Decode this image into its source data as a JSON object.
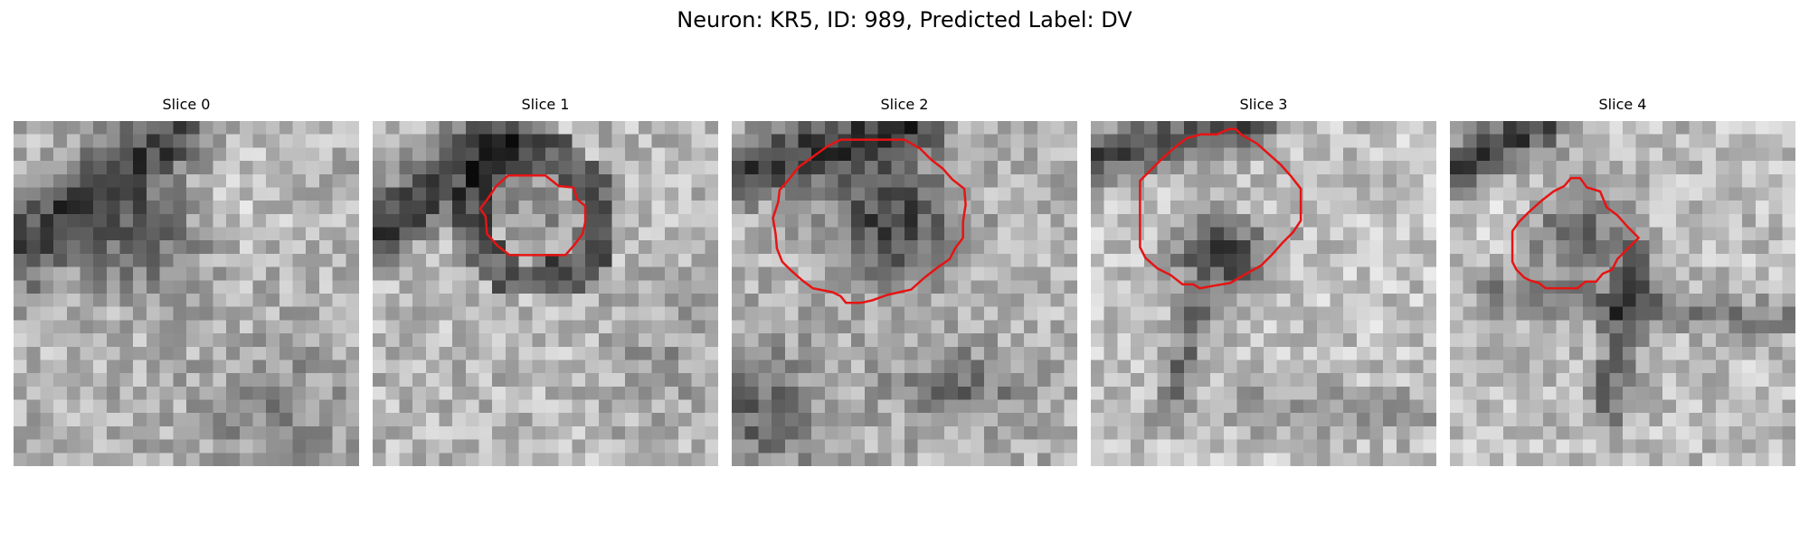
{
  "title": "Neuron: KR5, ID: 989, Predicted Label: DV",
  "contour_color": "#e61414",
  "panels": [
    {
      "label": "Slice 0",
      "has_contour": false,
      "contour": []
    },
    {
      "label": "Slice 1",
      "has_contour": true,
      "contour": [
        [
          10.2,
          4.1
        ],
        [
          13.0,
          4.1
        ],
        [
          14.0,
          4.9
        ],
        [
          15.1,
          5.0
        ],
        [
          15.4,
          5.9
        ],
        [
          16.0,
          6.4
        ],
        [
          16.0,
          7.6
        ],
        [
          15.8,
          8.5
        ],
        [
          15.2,
          9.3
        ],
        [
          14.5,
          10.1
        ],
        [
          10.3,
          10.1
        ],
        [
          9.4,
          9.4
        ],
        [
          8.6,
          8.5
        ],
        [
          8.5,
          7.2
        ],
        [
          8.1,
          6.6
        ],
        [
          8.7,
          5.8
        ],
        [
          9.3,
          4.9
        ]
      ]
    },
    {
      "label": "Slice 2",
      "has_contour": true,
      "contour": [
        [
          10.4,
          1.4
        ],
        [
          13.0,
          1.4
        ],
        [
          14.2,
          2.1
        ],
        [
          15.0,
          2.9
        ],
        [
          15.9,
          3.6
        ],
        [
          16.6,
          4.4
        ],
        [
          17.5,
          5.1
        ],
        [
          17.6,
          6.3
        ],
        [
          17.4,
          7.6
        ],
        [
          17.4,
          8.8
        ],
        [
          16.8,
          9.6
        ],
        [
          16.4,
          10.4
        ],
        [
          15.4,
          11.1
        ],
        [
          14.5,
          11.8
        ],
        [
          13.5,
          12.7
        ],
        [
          12.6,
          12.9
        ],
        [
          11.7,
          13.1
        ],
        [
          10.6,
          13.5
        ],
        [
          9.7,
          13.7
        ],
        [
          8.6,
          13.7
        ],
        [
          8.2,
          13.2
        ],
        [
          7.6,
          12.9
        ],
        [
          6.1,
          12.6
        ],
        [
          5.3,
          12.0
        ],
        [
          4.4,
          11.2
        ],
        [
          3.8,
          10.6
        ],
        [
          3.4,
          9.6
        ],
        [
          3.3,
          8.5
        ],
        [
          3.1,
          7.3
        ],
        [
          3.5,
          6.1
        ],
        [
          3.6,
          5.2
        ],
        [
          4.3,
          4.4
        ],
        [
          5.0,
          3.5
        ],
        [
          6.1,
          2.7
        ],
        [
          7.2,
          1.9
        ],
        [
          8.2,
          1.4
        ]
      ]
    },
    {
      "label": "Slice 3",
      "has_contour": true,
      "contour": [
        [
          9.5,
          1.0
        ],
        [
          10.4,
          0.6
        ],
        [
          10.9,
          0.6
        ],
        [
          11.3,
          1.0
        ],
        [
          12.5,
          1.7
        ],
        [
          13.4,
          2.5
        ],
        [
          14.3,
          3.3
        ],
        [
          15.1,
          4.2
        ],
        [
          15.8,
          5.1
        ],
        [
          15.8,
          6.3
        ],
        [
          15.8,
          7.5
        ],
        [
          15.2,
          8.4
        ],
        [
          14.4,
          9.2
        ],
        [
          13.6,
          10.1
        ],
        [
          12.8,
          10.9
        ],
        [
          11.7,
          11.5
        ],
        [
          10.5,
          12.2
        ],
        [
          9.3,
          12.4
        ],
        [
          8.2,
          12.6
        ],
        [
          7.7,
          12.3
        ],
        [
          6.9,
          12.3
        ],
        [
          6.0,
          11.6
        ],
        [
          5.0,
          11.1
        ],
        [
          4.1,
          10.3
        ],
        [
          3.7,
          9.5
        ],
        [
          3.7,
          8.2
        ],
        [
          3.7,
          7.0
        ],
        [
          3.7,
          5.7
        ],
        [
          3.7,
          4.5
        ],
        [
          4.5,
          3.7
        ],
        [
          5.4,
          2.8
        ],
        [
          6.3,
          2.0
        ],
        [
          7.2,
          1.3
        ],
        [
          8.3,
          1.0
        ]
      ]
    },
    {
      "label": "Slice 4",
      "has_contour": true,
      "contour": [
        [
          9.1,
          4.3
        ],
        [
          9.8,
          4.3
        ],
        [
          10.3,
          5.0
        ],
        [
          11.3,
          5.3
        ],
        [
          11.8,
          6.5
        ],
        [
          12.6,
          7.1
        ],
        [
          13.4,
          8.0
        ],
        [
          14.2,
          8.8
        ],
        [
          13.4,
          9.6
        ],
        [
          12.6,
          10.4
        ],
        [
          12.2,
          11.2
        ],
        [
          11.5,
          11.5
        ],
        [
          11.0,
          12.1
        ],
        [
          10.2,
          12.1
        ],
        [
          9.6,
          12.6
        ],
        [
          8.2,
          12.6
        ],
        [
          7.2,
          12.6
        ],
        [
          6.7,
          12.2
        ],
        [
          6.0,
          12.0
        ],
        [
          5.6,
          11.8
        ],
        [
          5.0,
          11.2
        ],
        [
          4.7,
          10.6
        ],
        [
          4.7,
          9.5
        ],
        [
          4.7,
          8.3
        ],
        [
          5.2,
          7.6
        ],
        [
          6.0,
          6.8
        ],
        [
          6.9,
          6.0
        ],
        [
          7.8,
          5.3
        ],
        [
          8.6,
          4.9
        ]
      ]
    }
  ]
}
